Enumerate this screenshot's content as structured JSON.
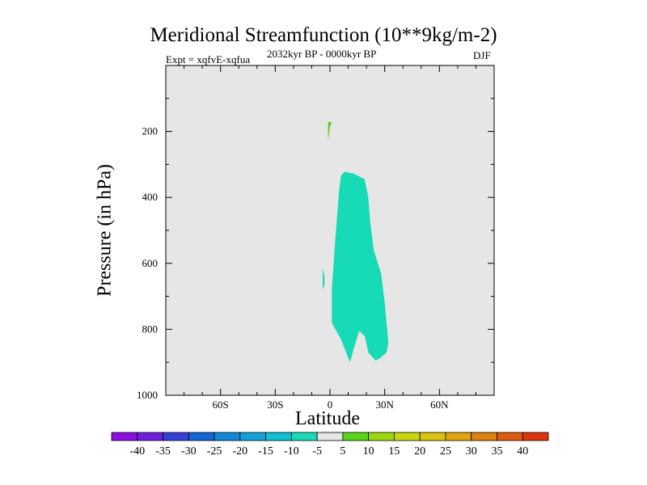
{
  "chart_data": {
    "type": "contour",
    "title": "Meridional Streamfunction (10**9kg/m-2)",
    "experiment": "Expt = xqfvE-xqfua",
    "period": "2032kyr BP - 0000kyr BP",
    "season": "DJF",
    "xlabel": "Latitude",
    "ylabel": "Pressure (in hPa)",
    "xlim": [
      -90,
      90
    ],
    "ylim": [
      1000,
      0
    ],
    "x_ticks": [
      {
        "value": -60,
        "label": "60S"
      },
      {
        "value": -30,
        "label": "30S"
      },
      {
        "value": 0,
        "label": "0"
      },
      {
        "value": 30,
        "label": "30N"
      },
      {
        "value": 60,
        "label": "60N"
      }
    ],
    "y_ticks": [
      {
        "value": 200,
        "label": "200"
      },
      {
        "value": 400,
        "label": "400"
      },
      {
        "value": 600,
        "label": "600"
      },
      {
        "value": 800,
        "label": "800"
      },
      {
        "value": 1000,
        "label": "1000"
      }
    ],
    "background_color": "#e6e6e6",
    "colorbar": {
      "boundaries": [
        "-40",
        "-35",
        "-30",
        "-25",
        "-20",
        "-15",
        "-10",
        "-5",
        "5",
        "10",
        "15",
        "20",
        "25",
        "30",
        "35",
        "40"
      ],
      "colors": [
        "#8a0fe0",
        "#6f1ee0",
        "#3540d8",
        "#1565d8",
        "#1187d8",
        "#10a2d8",
        "#0ebfd6",
        "#17dbb6",
        "#e6e6e6",
        "#5ad41a",
        "#9ed60e",
        "#c8d60e",
        "#dcc40e",
        "#e0a40e",
        "#e0800e",
        "#e05a0e",
        "#e0340e"
      ]
    },
    "regions": [
      {
        "name": "negative-cell-lower",
        "interval": "-10 to -5",
        "color": "#17dbb6",
        "outline": [
          [
            8,
            322
          ],
          [
            6,
            335
          ],
          [
            5,
            380
          ],
          [
            4,
            450
          ],
          [
            3,
            520
          ],
          [
            2,
            600
          ],
          [
            1,
            680
          ],
          [
            1,
            780
          ],
          [
            6,
            830
          ],
          [
            11,
            900
          ],
          [
            13,
            860
          ],
          [
            16,
            805
          ],
          [
            19,
            820
          ],
          [
            21,
            870
          ],
          [
            25,
            895
          ],
          [
            28,
            885
          ],
          [
            31,
            870
          ],
          [
            32,
            840
          ],
          [
            31,
            780
          ],
          [
            30,
            720
          ],
          [
            28,
            630
          ],
          [
            24,
            560
          ],
          [
            22,
            470
          ],
          [
            21,
            400
          ],
          [
            19,
            345
          ],
          [
            13,
            328
          ]
        ]
      },
      {
        "name": "negative-cell-small",
        "interval": "-10 to -5",
        "color": "#17dbb6",
        "outline": [
          [
            -4,
            615
          ],
          [
            -3,
            640
          ],
          [
            -3,
            665
          ],
          [
            -4,
            680
          ],
          [
            -4,
            650
          ]
        ]
      },
      {
        "name": "positive-cell-upper",
        "interval": "5 to 10",
        "color": "#5ad41a",
        "outline": [
          [
            -1,
            170
          ],
          [
            1,
            173
          ],
          [
            0,
            185
          ],
          [
            -1,
            230
          ],
          [
            -1,
            210
          ]
        ]
      }
    ]
  }
}
